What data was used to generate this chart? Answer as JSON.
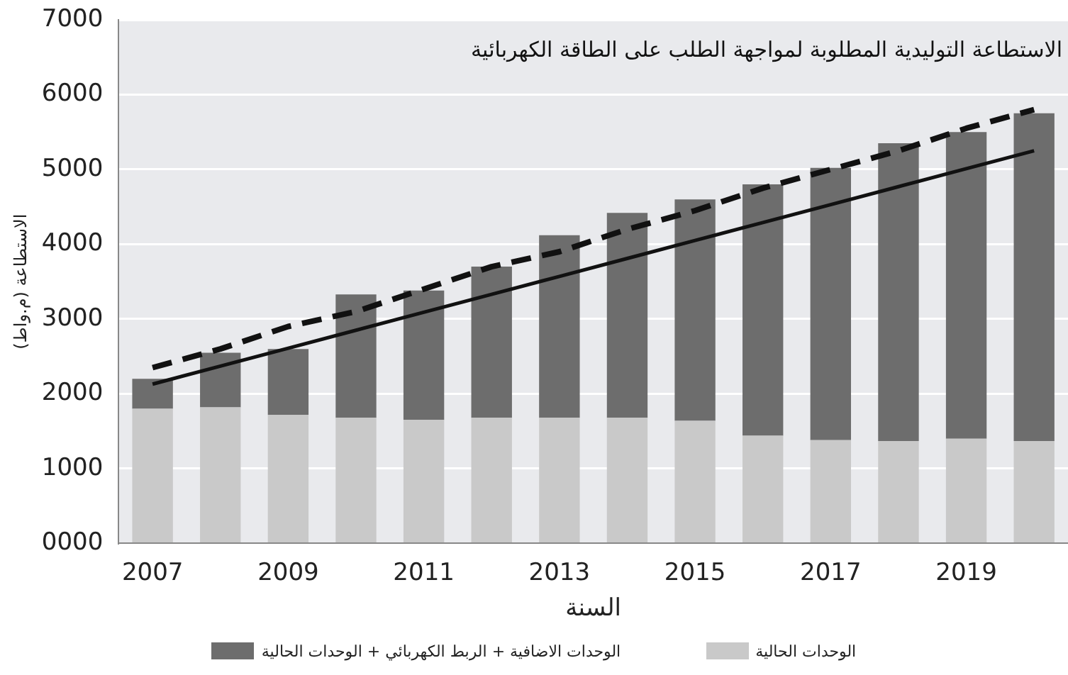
{
  "chart_data": {
    "type": "bar",
    "title": "الاستطاعة التوليدية المطلوبة لمواجهة الطلب على الطاقة الكهربائية",
    "xlabel": "السنة",
    "ylabel": "الاستطاعة (م.واط)",
    "categories": [
      "2007",
      null,
      "2009",
      null,
      "2011",
      null,
      "2013",
      null,
      "2015",
      null,
      "2017",
      null,
      "2019",
      null
    ],
    "stacked": true,
    "series": [
      {
        "name": "الوحدات الحالية",
        "color": "#c9c9c9",
        "values": [
          1800,
          1820,
          1720,
          1680,
          1650,
          1680,
          1680,
          1680,
          1640,
          1440,
          1380,
          1370,
          1400,
          1370
        ]
      },
      {
        "name": "الوحدات الاضافية + الربط الكهربائي + الوحدات الحالية",
        "color": "#6d6d6d",
        "values": [
          400,
          730,
          880,
          1650,
          1730,
          2020,
          2440,
          2740,
          2960,
          3360,
          3640,
          3980,
          4100,
          4380
        ]
      },
      {
        "type": "line",
        "color": "#111111",
        "line_style": "solid",
        "values": [
          2130,
          2370,
          2610,
          2850,
          3090,
          3330,
          3570,
          3810,
          4050,
          4290,
          4530,
          4770,
          5010,
          5250
        ]
      },
      {
        "type": "line",
        "color": "#111111",
        "line_style": "dashed",
        "values": [
          2350,
          2600,
          2900,
          3100,
          3400,
          3700,
          3900,
          4200,
          4450,
          4750,
          5000,
          5250,
          5550,
          5800
        ]
      }
    ],
    "ylim": [
      0,
      7000
    ],
    "yticks": [
      {
        "value": 0,
        "label": "0000"
      },
      1000,
      2000,
      3000,
      4000,
      5000,
      6000,
      7000
    ],
    "grid": "y",
    "legend": "bottom",
    "marker": "none"
  }
}
